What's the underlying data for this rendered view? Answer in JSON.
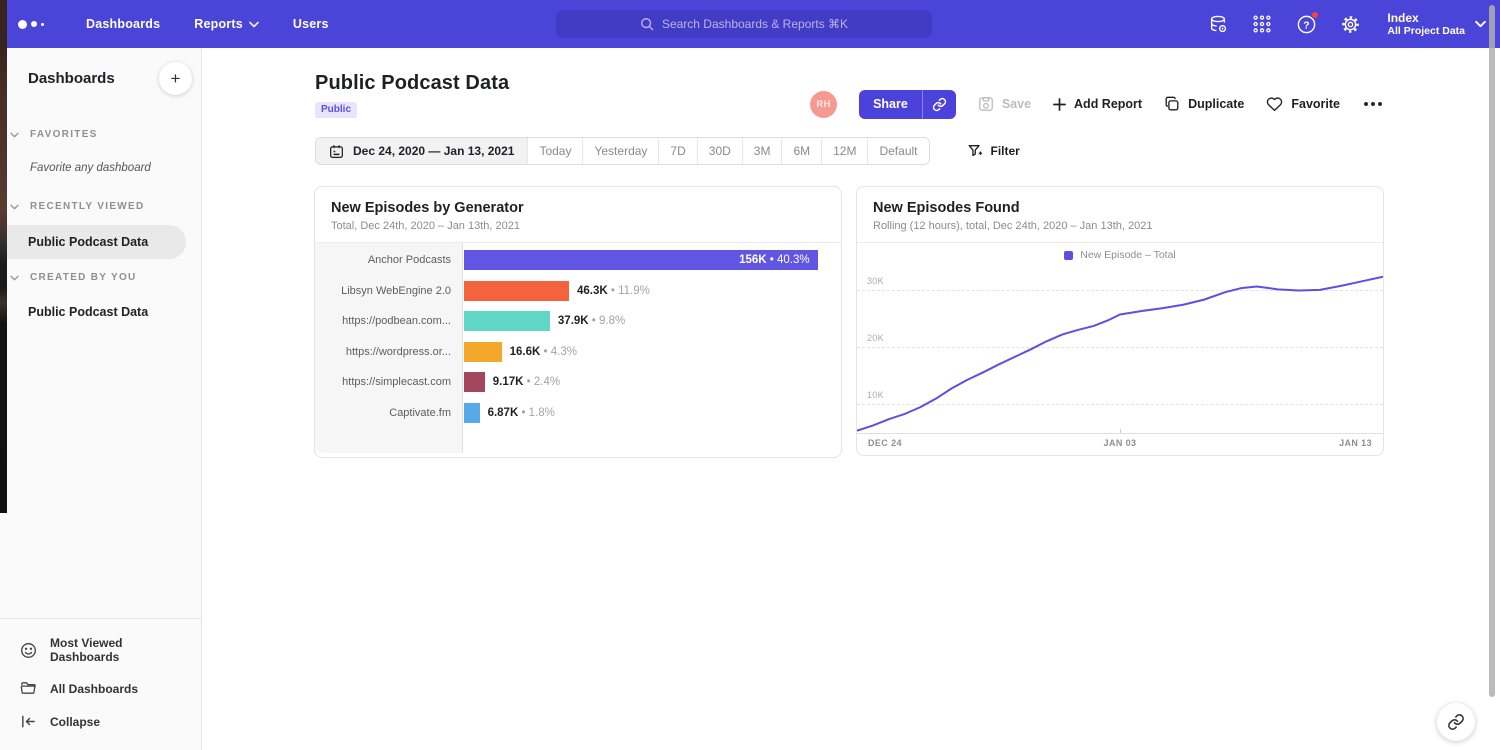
{
  "navbar": {
    "items": [
      "Dashboards",
      "Reports",
      "Users"
    ],
    "search_placeholder": "Search Dashboards & Reports ⌘K",
    "workspace_name": "Index",
    "workspace_scope": "All Project Data"
  },
  "sidebar": {
    "title": "Dashboards",
    "add_button": "+",
    "sections": [
      {
        "header": "FAVORITES",
        "empty_hint": "Favorite any dashboard"
      },
      {
        "header": "RECENTLY VIEWED",
        "item": "Public Podcast Data"
      },
      {
        "header": "CREATED BY YOU",
        "item": "Public Podcast Data"
      }
    ],
    "footer": [
      {
        "icon": "smiley-icon",
        "label": "Most Viewed Dashboards"
      },
      {
        "icon": "folder-icon",
        "label": "All Dashboards"
      },
      {
        "icon": "collapse-icon",
        "label": "Collapse"
      }
    ]
  },
  "header": {
    "title": "Public Podcast Data",
    "badge": "Public",
    "avatar_initials": "RH",
    "share_label": "Share",
    "save_label": "Save",
    "add_report_label": "Add Report",
    "duplicate_label": "Duplicate",
    "favorite_label": "Favorite"
  },
  "datebar": {
    "range_label": "Dec 24, 2020 — Jan 13, 2021",
    "presets": [
      "Today",
      "Yesterday",
      "7D",
      "30D",
      "3M",
      "6M",
      "12M",
      "Default"
    ],
    "filter_label": "Filter"
  },
  "chart_data": [
    {
      "type": "bar",
      "orientation": "horizontal",
      "title": "New Episodes by Generator",
      "subtitle": "Total, Dec 24th, 2020 – Jan 13th, 2021",
      "categories": [
        "Anchor Podcasts",
        "Libsyn WebEngine 2.0",
        "https://podbean.com...",
        "https://wordpress.or...",
        "https://simplecast.com",
        "Captivate.fm"
      ],
      "values": [
        156000,
        46300,
        37900,
        16600,
        9170,
        6870
      ],
      "value_labels": [
        "156K",
        "46.3K",
        "37.9K",
        "16.6K",
        "9.17K",
        "6.87K"
      ],
      "percent_labels": [
        "40.3%",
        "11.9%",
        "9.8%",
        "4.3%",
        "2.4%",
        "1.8%"
      ],
      "colors": [
        "#6156E4",
        "#F4623E",
        "#60D6C6",
        "#F3A72B",
        "#A4475C",
        "#57A9E8"
      ],
      "xlim": [
        0,
        166000
      ]
    },
    {
      "type": "line",
      "title": "New Episodes Found",
      "subtitle": "Rolling (12 hours), total, Dec 24th, 2020 – Jan 13th, 2021",
      "legend": [
        {
          "label": "New Episode – Total",
          "color": "#5A50E2"
        }
      ],
      "line_color": "#5A50E2",
      "x_ticks": [
        "DEC 24",
        "JAN 03",
        "JAN 13"
      ],
      "y_grid": [
        {
          "value": 10000,
          "label": "10K"
        },
        {
          "value": 20000,
          "label": "20K"
        },
        {
          "value": 30000,
          "label": "30K"
        }
      ],
      "ylim": [
        5000,
        34000
      ],
      "points": [
        [
          0,
          5400
        ],
        [
          3,
          6300
        ],
        [
          6,
          7400
        ],
        [
          9,
          8300
        ],
        [
          12,
          9500
        ],
        [
          15,
          11000
        ],
        [
          18,
          12800
        ],
        [
          21,
          14300
        ],
        [
          24,
          15600
        ],
        [
          27,
          17000
        ],
        [
          30,
          18300
        ],
        [
          33,
          19600
        ],
        [
          36,
          21000
        ],
        [
          39,
          22200
        ],
        [
          42,
          23000
        ],
        [
          45,
          23700
        ],
        [
          48,
          24800
        ],
        [
          50,
          25700
        ],
        [
          54,
          26300
        ],
        [
          58,
          26800
        ],
        [
          62,
          27400
        ],
        [
          66,
          28300
        ],
        [
          70,
          29600
        ],
        [
          73,
          30300
        ],
        [
          76,
          30600
        ],
        [
          80,
          30100
        ],
        [
          84,
          29900
        ],
        [
          88,
          30000
        ],
        [
          92,
          30700
        ],
        [
          96,
          31500
        ],
        [
          100,
          32300
        ]
      ]
    }
  ],
  "colors": {
    "navbar_bg": "#4A44D9",
    "accent": "#4B41DB",
    "badge_bg": "#E7E4FB",
    "badge_text": "#5B50E0",
    "avatar_bg": "#F49A93"
  }
}
